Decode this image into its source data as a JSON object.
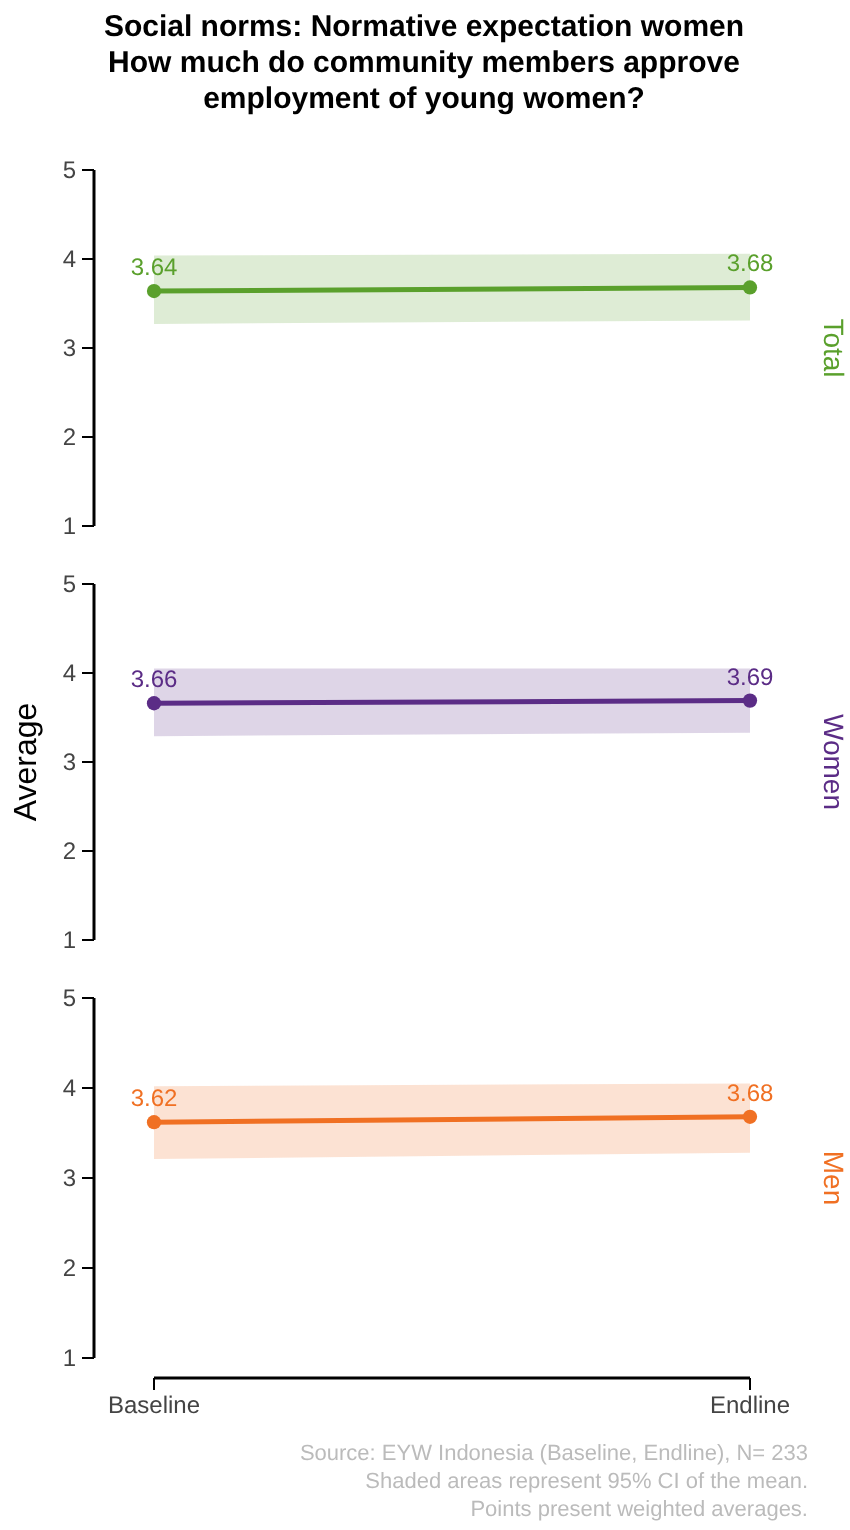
{
  "chart_data": [
    {
      "type": "line",
      "title": "Social norms: Normative expectation women",
      "subtitle": "How much do community members approve employment of young women?",
      "categories": [
        "Baseline",
        "Endline"
      ],
      "series": [
        {
          "name": "Total",
          "color": "#5aa02c",
          "values": [
            3.64,
            3.68
          ],
          "lower": [
            3.27,
            3.31
          ],
          "upper": [
            4.04,
            4.06
          ]
        }
      ],
      "ylim": [
        1,
        5
      ],
      "yticks": [
        1,
        2,
        3,
        4,
        5
      ],
      "data_labels": true,
      "marker": "circle",
      "grid": false,
      "legend": false,
      "tick_labels": "y"
    },
    {
      "type": "line",
      "ylabel": "Average",
      "categories": [
        "Baseline",
        "Endline"
      ],
      "series": [
        {
          "name": "Women",
          "color": "#5b2c86",
          "values": [
            3.66,
            3.69
          ],
          "lower": [
            3.29,
            3.33
          ],
          "upper": [
            4.05,
            4.05
          ]
        }
      ],
      "ylim": [
        1,
        5
      ],
      "yticks": [
        1,
        2,
        3,
        4,
        5
      ],
      "data_labels": true,
      "marker": "circle",
      "grid": false,
      "legend": false,
      "tick_labels": "y"
    },
    {
      "type": "line",
      "categories": [
        "Baseline",
        "Endline"
      ],
      "series": [
        {
          "name": "Men",
          "color": "#f07023",
          "values": [
            3.62,
            3.68
          ],
          "lower": [
            3.21,
            3.28
          ],
          "upper": [
            4.02,
            4.05
          ]
        }
      ],
      "ylim": [
        1,
        5
      ],
      "yticks": [
        1,
        2,
        3,
        4,
        5
      ],
      "data_labels": true,
      "marker": "circle",
      "grid": false,
      "legend": false,
      "annotations": [
        "Source: EYW Indonesia (Baseline, Endline), N= 233",
        "Shaded areas represent 95% CI of the mean.",
        "Points present weighted averages."
      ]
    }
  ]
}
